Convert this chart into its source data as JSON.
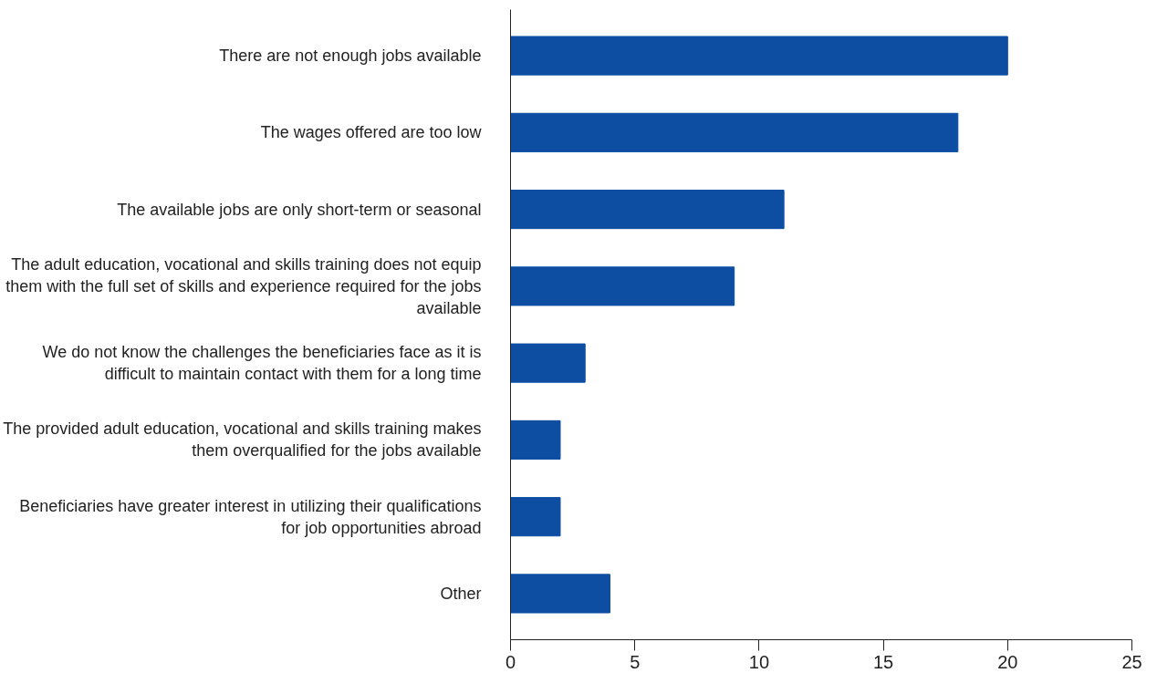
{
  "chart_data": {
    "type": "bar",
    "orientation": "horizontal",
    "categories": [
      "There are not enough jobs available",
      "The wages offered are too low",
      "The available jobs are only short-term or seasonal",
      "The adult education, vocational and skills training does not equip them with the full set of skills and experience required for the jobs available",
      "We do not know the challenges the beneficiaries face as it is difficult to maintain contact with them for a long time",
      "The provided adult education, vocational and skills training makes them overqualified for the jobs available",
      "Beneficiaries have greater interest in utilizing their qualifications for job opportunities abroad",
      "Other"
    ],
    "values": [
      20,
      18,
      11,
      9,
      3,
      2,
      2,
      4
    ],
    "color": "#0d4ea3",
    "xlim": [
      0,
      25
    ],
    "xticks": [
      0,
      5,
      10,
      15,
      20,
      25
    ],
    "grid": false
  }
}
